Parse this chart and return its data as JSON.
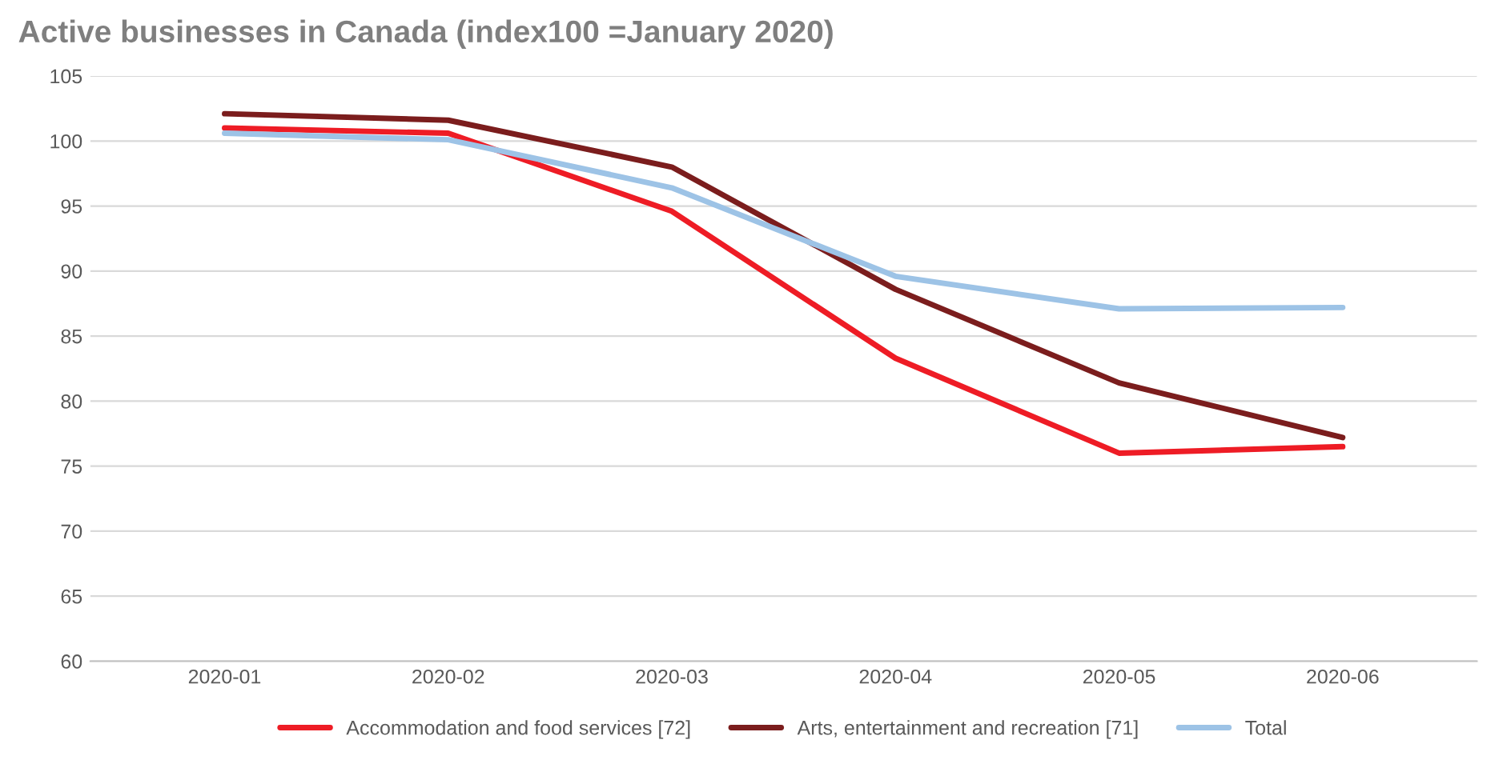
{
  "chart_data": {
    "type": "line",
    "title": "Active businesses in Canada (index100 =January 2020)",
    "categories": [
      "2020-01",
      "2020-02",
      "2020-03",
      "2020-04",
      "2020-05",
      "2020-06"
    ],
    "series": [
      {
        "name": "Accommodation and food services [72]",
        "color": "#ee1c25",
        "values": [
          101.0,
          100.6,
          94.6,
          83.3,
          76.0,
          76.5
        ]
      },
      {
        "name": "Arts, entertainment and recreation [71]",
        "color": "#7b1d1d",
        "values": [
          102.1,
          101.6,
          98.0,
          88.6,
          81.4,
          77.2
        ]
      },
      {
        "name": "Total",
        "color": "#9dc3e6",
        "values": [
          100.6,
          100.1,
          96.4,
          89.6,
          87.1,
          87.2
        ]
      }
    ],
    "ylim": [
      60,
      105
    ],
    "yticks": [
      60,
      65,
      70,
      75,
      80,
      85,
      90,
      95,
      100,
      105
    ],
    "grid": "y",
    "legend": "bottom",
    "marker": "none",
    "line_style": "solid"
  }
}
